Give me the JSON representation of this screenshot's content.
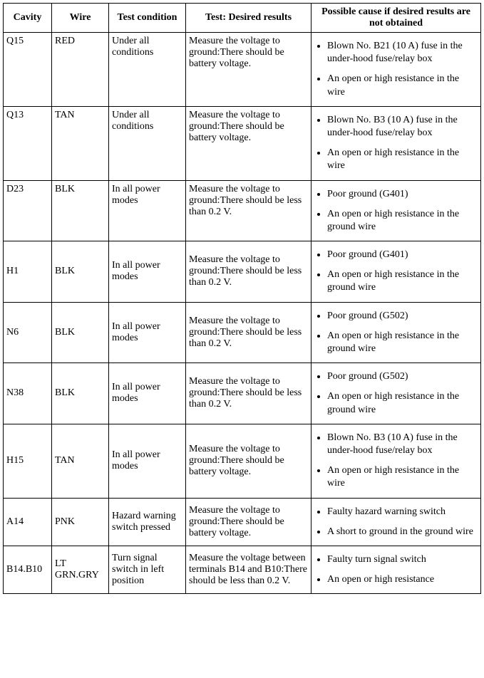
{
  "headers": {
    "cavity": "Cavity",
    "wire": "Wire",
    "condition": "Test condition",
    "result": "Test: Desired results",
    "cause": "Possible cause if desired results are not obtained"
  },
  "rows": [
    {
      "cavity": "Q15",
      "wire": "RED",
      "condition": "Under all conditions",
      "result": "Measure the voltage to ground:There should be battery voltage.",
      "causes": [
        "Blown No. B21 (10 A) fuse in the under-hood fuse/relay box",
        "An open or high resistance in the wire"
      ]
    },
    {
      "cavity": "Q13",
      "wire": "TAN",
      "condition": "Under all conditions",
      "result": "Measure the voltage to ground:There should be battery voltage.",
      "causes": [
        "Blown No. B3 (10 A) fuse in the under-hood fuse/relay box",
        "An open or high resistance in the wire"
      ]
    },
    {
      "cavity": "D23",
      "wire": "BLK",
      "condition": "In all power modes",
      "result": "Measure the voltage to ground:There should be less than 0.2 V.",
      "causes": [
        "Poor ground (G401)",
        "An open or high resistance in the ground wire"
      ]
    },
    {
      "cavity": "H1",
      "wire": "BLK",
      "condition": "In all power modes",
      "result": "Measure the voltage to ground:There should be less than 0.2 V.",
      "causes": [
        "Poor ground (G401)",
        "An open or high resistance in the ground wire"
      ]
    },
    {
      "cavity": "N6",
      "wire": "BLK",
      "condition": "In all power modes",
      "result": "Measure the voltage to ground:There should be less than 0.2 V.",
      "causes": [
        "Poor ground (G502)",
        "An open or high resistance in the ground wire"
      ]
    },
    {
      "cavity": "N38",
      "wire": "BLK",
      "condition": "In all power modes",
      "result": "Measure the voltage to ground:There should be less than 0.2 V.",
      "causes": [
        "Poor ground (G502)",
        "An open or high resistance in the ground wire"
      ]
    },
    {
      "cavity": "H15",
      "wire": "TAN",
      "condition": "In all power modes",
      "result": "Measure the voltage to ground:There should be battery voltage.",
      "causes": [
        "Blown No. B3 (10 A) fuse in the under-hood fuse/relay box",
        "An open or high resistance in the wire"
      ]
    },
    {
      "cavity": "A14",
      "wire": "PNK",
      "condition": "Hazard warning switch pressed",
      "result": "Measure the voltage to ground:There should be battery voltage.",
      "causes": [
        "Faulty hazard warning switch",
        "A short to ground in the ground wire"
      ]
    },
    {
      "cavity": "B14.B10",
      "wire": "LT GRN.GRY",
      "condition": "Turn signal switch in left position",
      "result": "Measure the voltage between terminals B14 and B10:There should be less than 0.2 V.",
      "causes": [
        "Faulty turn signal switch",
        "An open or high resistance"
      ]
    }
  ]
}
